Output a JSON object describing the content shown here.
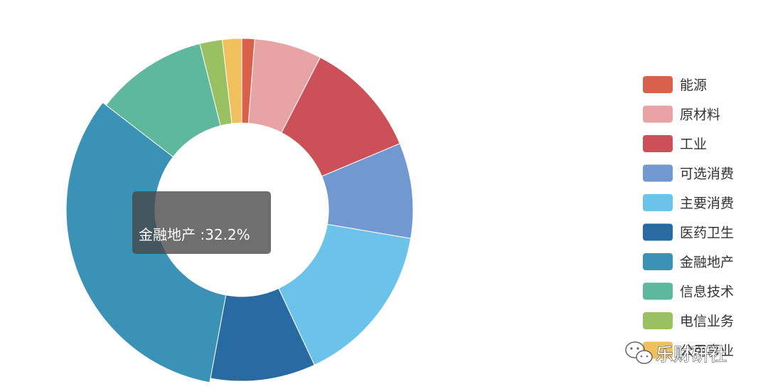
{
  "chart_data": {
    "type": "pie",
    "title": "",
    "donut": true,
    "legend_position": "right",
    "categories": [
      "能源",
      "原材料",
      "工业",
      "可选消费",
      "主要消费",
      "医药卫生",
      "金融地产",
      "信息技术",
      "电信业务",
      "公用事业"
    ],
    "values": [
      1.2,
      6.3,
      11.0,
      8.9,
      15.2,
      9.8,
      32.2,
      10.5,
      2.1,
      1.8
    ],
    "colors": [
      "#d9614c",
      "#e8a3a4",
      "#cc5058",
      "#7199cf",
      "#6bc3ea",
      "#286aa2",
      "#3a93b6",
      "#5db89c",
      "#99c161",
      "#efc05c"
    ],
    "highlight_index": 6,
    "tooltip": "金融地产 :32.2%"
  },
  "watermark": {
    "text": "乐财研社",
    "icon": "wechat-icon"
  }
}
